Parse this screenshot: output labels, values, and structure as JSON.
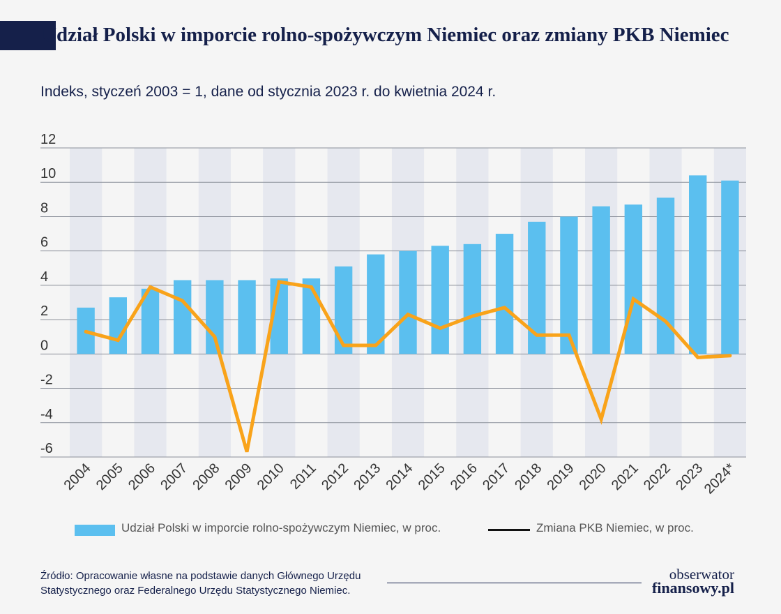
{
  "title": "Udział Polski w imporcie rolno-spożywczym Niemiec oraz zmiany PKB Niemiec",
  "subtitle": "Indeks, styczeń 2003 = 1, dane od stycznia 2023 r. do kwietnia 2024 r.",
  "legend": {
    "bars": "Udział Polski w imporcie rolno-spożywczym Niemiec, w proc.",
    "line": "Zmiana PKB Niemiec, w proc."
  },
  "source": {
    "line1": "Źródło: Opracowanie własne na podstawie danych Głównego Urzędu",
    "line2": "Statystycznego oraz Federalnego Urzędu Statystycznego Niemiec."
  },
  "logo": {
    "line1": "obserwator",
    "line2": "finansowy.pl"
  },
  "colors": {
    "bars": "#5bbfef",
    "line": "#f9a31a",
    "band": "#e6e8ef",
    "text": "#15204a"
  },
  "chart_data": {
    "type": "bar",
    "categories": [
      "2004",
      "2005",
      "2006",
      "2007",
      "2008",
      "2009",
      "2010",
      "2011",
      "2012",
      "2013",
      "2014",
      "2015",
      "2016",
      "2017",
      "2018",
      "2019",
      "2020",
      "2021",
      "2022",
      "2023",
      "2024*"
    ],
    "ylim": [
      -6,
      12
    ],
    "yticks": [
      "-6",
      "-4",
      "-2",
      "0",
      "2",
      "4",
      "6",
      "8",
      "10",
      "12"
    ],
    "grid": true,
    "series": [
      {
        "name": "Udział Polski w imporcie rolno-spożywczym Niemiec, w proc.",
        "type": "bar",
        "values": [
          2.7,
          3.3,
          3.8,
          4.3,
          4.3,
          4.3,
          4.4,
          4.4,
          5.1,
          5.8,
          6.0,
          6.3,
          6.4,
          7.0,
          7.7,
          8.0,
          8.6,
          8.7,
          9.1,
          10.4,
          10.1
        ]
      },
      {
        "name": "Zmiana PKB Niemiec, w proc.",
        "type": "line",
        "values": [
          1.3,
          0.8,
          3.9,
          3.1,
          1.0,
          -5.7,
          4.2,
          3.9,
          0.5,
          0.5,
          2.3,
          1.5,
          2.2,
          2.7,
          1.1,
          1.1,
          -3.8,
          3.2,
          1.9,
          -0.2,
          -0.1
        ]
      }
    ]
  }
}
